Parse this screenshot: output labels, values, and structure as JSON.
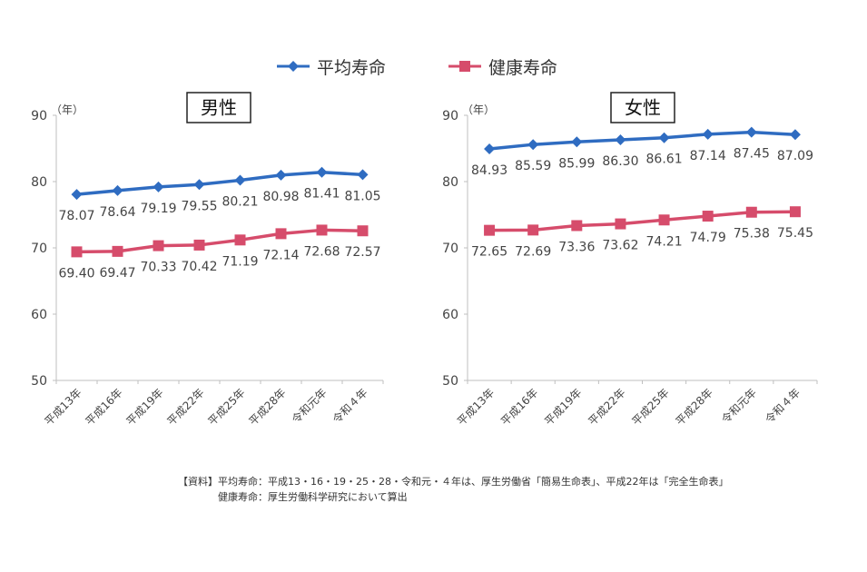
{
  "legend": [
    {
      "name": "平均寿命",
      "color": "#2f6cc1",
      "marker": "diamond"
    },
    {
      "name": "健康寿命",
      "color": "#d64c6b",
      "marker": "square"
    }
  ],
  "chart_data": [
    {
      "type": "line",
      "title": "男性",
      "unit": "（年）",
      "categories": [
        "平成13年",
        "平成16年",
        "平成19年",
        "平成22年",
        "平成25年",
        "平成28年",
        "令和元年",
        "令和４年"
      ],
      "ylim": [
        50,
        90
      ],
      "yticks": [
        50,
        60,
        70,
        80,
        90
      ],
      "series": [
        {
          "name": "平均寿命",
          "values": [
            78.07,
            78.64,
            79.19,
            79.55,
            80.21,
            80.98,
            81.41,
            81.05
          ]
        },
        {
          "name": "健康寿命",
          "values": [
            69.4,
            69.47,
            70.33,
            70.42,
            71.19,
            72.14,
            72.68,
            72.57
          ]
        }
      ]
    },
    {
      "type": "line",
      "title": "女性",
      "unit": "（年）",
      "categories": [
        "平成13年",
        "平成16年",
        "平成19年",
        "平成22年",
        "平成25年",
        "平成28年",
        "令和元年",
        "令和４年"
      ],
      "ylim": [
        50,
        90
      ],
      "yticks": [
        50,
        60,
        70,
        80,
        90
      ],
      "series": [
        {
          "name": "平均寿命",
          "values": [
            84.93,
            85.59,
            85.99,
            86.3,
            86.61,
            87.14,
            87.45,
            87.09
          ]
        },
        {
          "name": "健康寿命",
          "values": [
            72.65,
            72.69,
            73.36,
            73.62,
            74.21,
            74.79,
            75.38,
            75.45
          ]
        }
      ]
    }
  ],
  "footnote": {
    "line1": "【資料】平均寿命：平成13・16・19・25・28・令和元・４年は、厚生労働省「簡易生命表」、平成22年は「完全生命表」",
    "line2": "　　　　健康寿命：厚生労働科学研究において算出"
  }
}
